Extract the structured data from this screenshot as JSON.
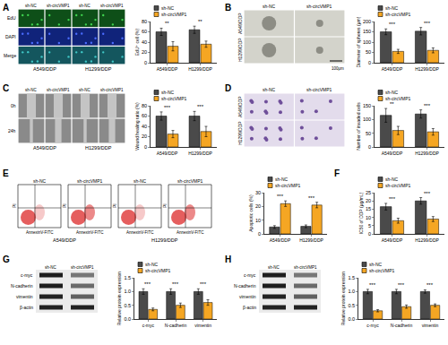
{
  "chart_data": [
    {
      "panel": "A",
      "type": "bar",
      "y_label": "EdU⁺ cell (%)",
      "categories": [
        "A549/DDP",
        "H1299/DDP"
      ],
      "series": [
        {
          "name": "sh-NC",
          "color": "#4a4a4a",
          "values": [
            60,
            64
          ],
          "error": [
            7,
            7
          ]
        },
        {
          "name": "sh-circVMP1",
          "color": "#f5a623",
          "values": [
            32,
            36
          ],
          "error": [
            9,
            6
          ]
        }
      ],
      "significance": [
        "**",
        "**"
      ],
      "ylim": [
        0,
        80
      ],
      "yticks": [
        0,
        20,
        40,
        60,
        80
      ],
      "legend": "top",
      "grid": false
    },
    {
      "panel": "B",
      "type": "bar",
      "y_label": "Diameter of spheres (μm)",
      "categories": [
        "A549/DDP",
        "H1299/DDP"
      ],
      "series": [
        {
          "name": "sh-NC",
          "color": "#4a4a4a",
          "values": [
            150,
            153
          ],
          "error": [
            14,
            18
          ]
        },
        {
          "name": "sh-circVMP1",
          "color": "#f5a623",
          "values": [
            55,
            60
          ],
          "error": [
            10,
            12
          ]
        }
      ],
      "significance": [
        "***",
        "***"
      ],
      "ylim": [
        0,
        200
      ],
      "yticks": [
        0,
        50,
        100,
        150,
        200
      ],
      "legend": "top",
      "grid": false
    },
    {
      "panel": "C",
      "type": "bar",
      "y_label": "Wound healing ratio (%)",
      "categories": [
        "A549/DDP",
        "H1299/DDP"
      ],
      "series": [
        {
          "name": "sh-NC",
          "color": "#4a4a4a",
          "values": [
            60,
            60
          ],
          "error": [
            8,
            9
          ]
        },
        {
          "name": "sh-circVMP1",
          "color": "#f5a623",
          "values": [
            25,
            30
          ],
          "error": [
            7,
            10
          ]
        }
      ],
      "significance": [
        "***",
        "***"
      ],
      "ylim": [
        0,
        80
      ],
      "yticks": [
        0,
        20,
        40,
        60,
        80
      ],
      "legend": "top",
      "grid": false
    },
    {
      "panel": "D",
      "type": "bar",
      "y_label": "Number of invaded cells",
      "categories": [
        "A549/DDP",
        "H1299/DDP"
      ],
      "series": [
        {
          "name": "sh-NC",
          "color": "#4a4a4a",
          "values": [
            115,
            120
          ],
          "error": [
            25,
            15
          ]
        },
        {
          "name": "sh-circVMP1",
          "color": "#f5a623",
          "values": [
            60,
            55
          ],
          "error": [
            15,
            12
          ]
        }
      ],
      "significance": [
        "**",
        "***"
      ],
      "ylim": [
        0,
        150
      ],
      "yticks": [
        0,
        50,
        100,
        150
      ],
      "legend": "top",
      "grid": false
    },
    {
      "panel": "E",
      "type": "bar",
      "y_label": "Apoptotic cells (%)",
      "categories": [
        "A549/DDP",
        "H1299/DDP"
      ],
      "series": [
        {
          "name": "sh-NC",
          "color": "#4a4a4a",
          "values": [
            5,
            5.5
          ],
          "error": [
            1,
            1
          ]
        },
        {
          "name": "sh-circVMP1",
          "color": "#f5a623",
          "values": [
            22,
            21
          ],
          "error": [
            2,
            2
          ]
        }
      ],
      "significance": [
        "***",
        "***"
      ],
      "ylim": [
        0,
        30
      ],
      "yticks": [
        0,
        10,
        20,
        30
      ],
      "legend": "top",
      "grid": false
    },
    {
      "panel": "F",
      "type": "bar",
      "y_label": "IC50 of DDP (μg/mL)",
      "categories": [
        "A549/DDP",
        "H1299/DDP"
      ],
      "series": [
        {
          "name": "sh-NC",
          "color": "#4a4a4a",
          "values": [
            16.5,
            20
          ],
          "error": [
            2,
            2
          ]
        },
        {
          "name": "sh-circVMP1",
          "color": "#f5a623",
          "values": [
            8,
            9
          ],
          "error": [
            1.5,
            1.5
          ]
        }
      ],
      "significance": [
        "***",
        "***"
      ],
      "ylim": [
        0,
        25
      ],
      "yticks": [
        0,
        5,
        10,
        15,
        20,
        25
      ],
      "legend": "top",
      "grid": false
    },
    {
      "panel": "G",
      "type": "bar",
      "y_label": "Relative protein expression",
      "categories": [
        "c-myc",
        "N-cadherin",
        "vimentin"
      ],
      "series": [
        {
          "name": "sh-NC",
          "color": "#4a4a4a",
          "values": [
            1,
            1,
            1
          ],
          "error": [
            0.1,
            0.1,
            0.1
          ]
        },
        {
          "name": "sh-circVMP1",
          "color": "#f5a623",
          "values": [
            0.35,
            0.5,
            0.6
          ],
          "error": [
            0.05,
            0.08,
            0.1
          ]
        }
      ],
      "significance": [
        "***",
        "***",
        "***"
      ],
      "ylim": [
        0,
        1.5
      ],
      "yticks": [
        {
          "value": 0,
          "label": "0.0"
        },
        0.5,
        {
          "value": 1,
          "label": "1.0"
        },
        1.5
      ],
      "legend": "top",
      "grid": false
    },
    {
      "panel": "H",
      "type": "bar",
      "y_label": "Relative protein expression",
      "categories": [
        "c-myc",
        "N-cadherin",
        "vimentin"
      ],
      "series": [
        {
          "name": "sh-NC",
          "color": "#4a4a4a",
          "values": [
            1,
            1,
            1
          ],
          "error": [
            0.08,
            0.08,
            0.06
          ]
        },
        {
          "name": "sh-circVMP1",
          "color": "#f5a623",
          "values": [
            0.3,
            0.45,
            0.5
          ],
          "error": [
            0.04,
            0.06,
            0.05
          ]
        }
      ],
      "significance": [
        "***",
        "***",
        "***"
      ],
      "ylim": [
        0,
        1.5
      ],
      "yticks": [
        {
          "value": 0,
          "label": "0.0"
        },
        0.5,
        {
          "value": 1,
          "label": "1.0"
        },
        1.5
      ],
      "legend": "top",
      "grid": false
    }
  ],
  "image_panels": {
    "edu": {
      "columns": [
        "sh-NC",
        "sh-circVMP1",
        "sh-NC",
        "sh-circVMP1"
      ],
      "rows": [
        "EdU",
        "DAPI",
        "Merge"
      ],
      "groups": [
        "A549/DDP",
        "H1299/DDP"
      ]
    },
    "spheres": {
      "columns": [
        "sh-NC",
        "sh-circVMP1"
      ],
      "rows": [
        "A549/DDP",
        "H1299/DDP"
      ],
      "scale_bar": "100μm"
    },
    "wound": {
      "columns": [
        "sh-NC",
        "sh-circVMP1",
        "sh-NC",
        "sh-circVMP1"
      ],
      "rows": [
        "0h",
        "24h"
      ],
      "groups": [
        "A549/DDP",
        "H1299/DDP"
      ]
    },
    "invasion": {
      "columns": [
        "sh-NC",
        "sh-circVMP1"
      ],
      "rows": [
        "A549/DDP",
        "H1299/DDP"
      ]
    },
    "flow": {
      "columns": [
        "sh-NC",
        "sh-circVMP1",
        "sh-NC",
        "sh-circVMP1"
      ],
      "groups": [
        "A549/DDP",
        "H1299/DDP"
      ],
      "x_label": "AnnexinV-FITC",
      "y_label": "PI"
    },
    "blot_a549": {
      "columns": [
        "sh-NC",
        "sh-circVMP1"
      ],
      "rows": [
        "c-myc",
        "N-cadherin",
        "vimentin",
        "β-actin"
      ]
    },
    "blot_h1299": {
      "columns": [
        "sh-NC",
        "sh-circVMP1"
      ],
      "rows": [
        "c-myc",
        "N-cadherin",
        "vimentin",
        "β-actin"
      ]
    }
  }
}
